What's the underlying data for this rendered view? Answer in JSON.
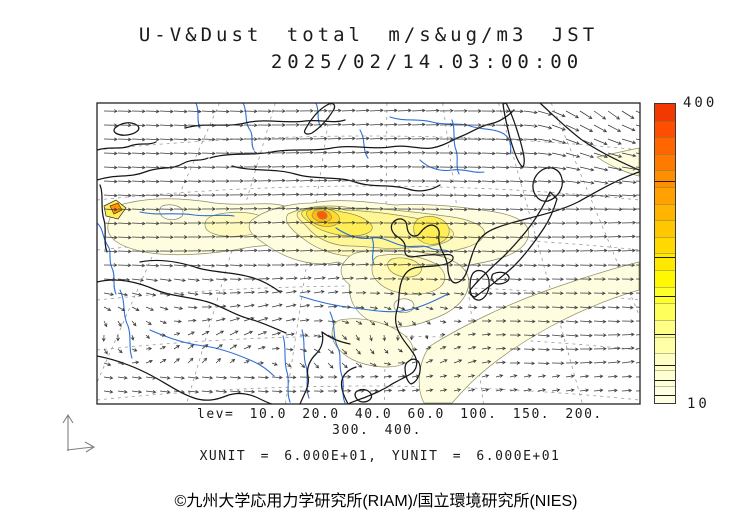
{
  "title": {
    "line1": "U-V&Dust total m/s&ug/m3 JST",
    "line2": "2025/02/14.03:00:00"
  },
  "legend": {
    "levels_line1": "lev= 10.0 20.0 40.0 60.0 100. 150. 200.",
    "levels_line2": "300. 400.",
    "units_line": "XUNIT = 6.000E+01, YUNIT = 6.000E+01"
  },
  "colorbar": {
    "top_label": "400",
    "bottom_label": "10",
    "colors": [
      "#f23900",
      "#fe4f00",
      "#ff6500",
      "#ff7a00",
      "#ff8e00",
      "#ffa100",
      "#ffb400",
      "#ffc700",
      "#ffd900",
      "#ffe900",
      "#fff800",
      "#ffff2a",
      "#ffff5c",
      "#ffff86",
      "#ffffa8",
      "#ffffc2",
      "#ffffd4",
      "#ffffe2"
    ]
  },
  "footer": {
    "copyright": "©九州大学応用力学研究所(RIAM)/国立環境研究所(NIES)"
  },
  "chart_data": {
    "type": "map-contour-vector",
    "title": "U-V&Dust total m/s&ug/m3 JST",
    "valid_time": "2025/02/14 03:00:00 JST",
    "variables": {
      "vectors": "U-V wind (m/s)",
      "shading": "Dust total concentration (ug/m3)"
    },
    "region": "East Asia",
    "contour_levels": [
      10.0,
      20.0,
      40.0,
      60.0,
      100.0,
      150.0,
      200.0,
      300.0,
      400.0
    ],
    "colorbar_range": [
      10,
      400
    ],
    "xunit": "6.000E+01",
    "yunit": "6.000E+01",
    "level_colors": {
      "l10": "#fffde0",
      "l20": "#fffbc0",
      "l40": "#fff795",
      "l60": "#ffee55",
      "l100": "#ffd92e",
      "l150": "#ffbb14",
      "l200": "#ff9608",
      "l300": "#ff5c04",
      "l400": "#ee3300",
      "hole": "#fffef6"
    },
    "wind_field": {
      "grid_spacing_px": 14,
      "pattern": "strong westerly flow across the northern half; cyclonic vortex at the top-right corner; weak variable winds over the southern third; east-southeastward flow over the southeast ocean"
    },
    "dust_features": [
      "pale 10-20 ug/m3 band over the Tarim Basin with a small local source maximum (>150 ug/m3)",
      "primary source maximum >300 ug/m3 over Gobi / Inner Mongolia with tight concentric contours",
      "20-100 ug/m3 plume stretching east across northern China and the Korean peninsula",
      "10-40 ug/m3 area over central-eastern China",
      "10-20 ug/m3 plume arcing southeast over the East China Sea to the map edge",
      "small 10 ug/m3 patch at the upper-right map corner"
    ]
  }
}
